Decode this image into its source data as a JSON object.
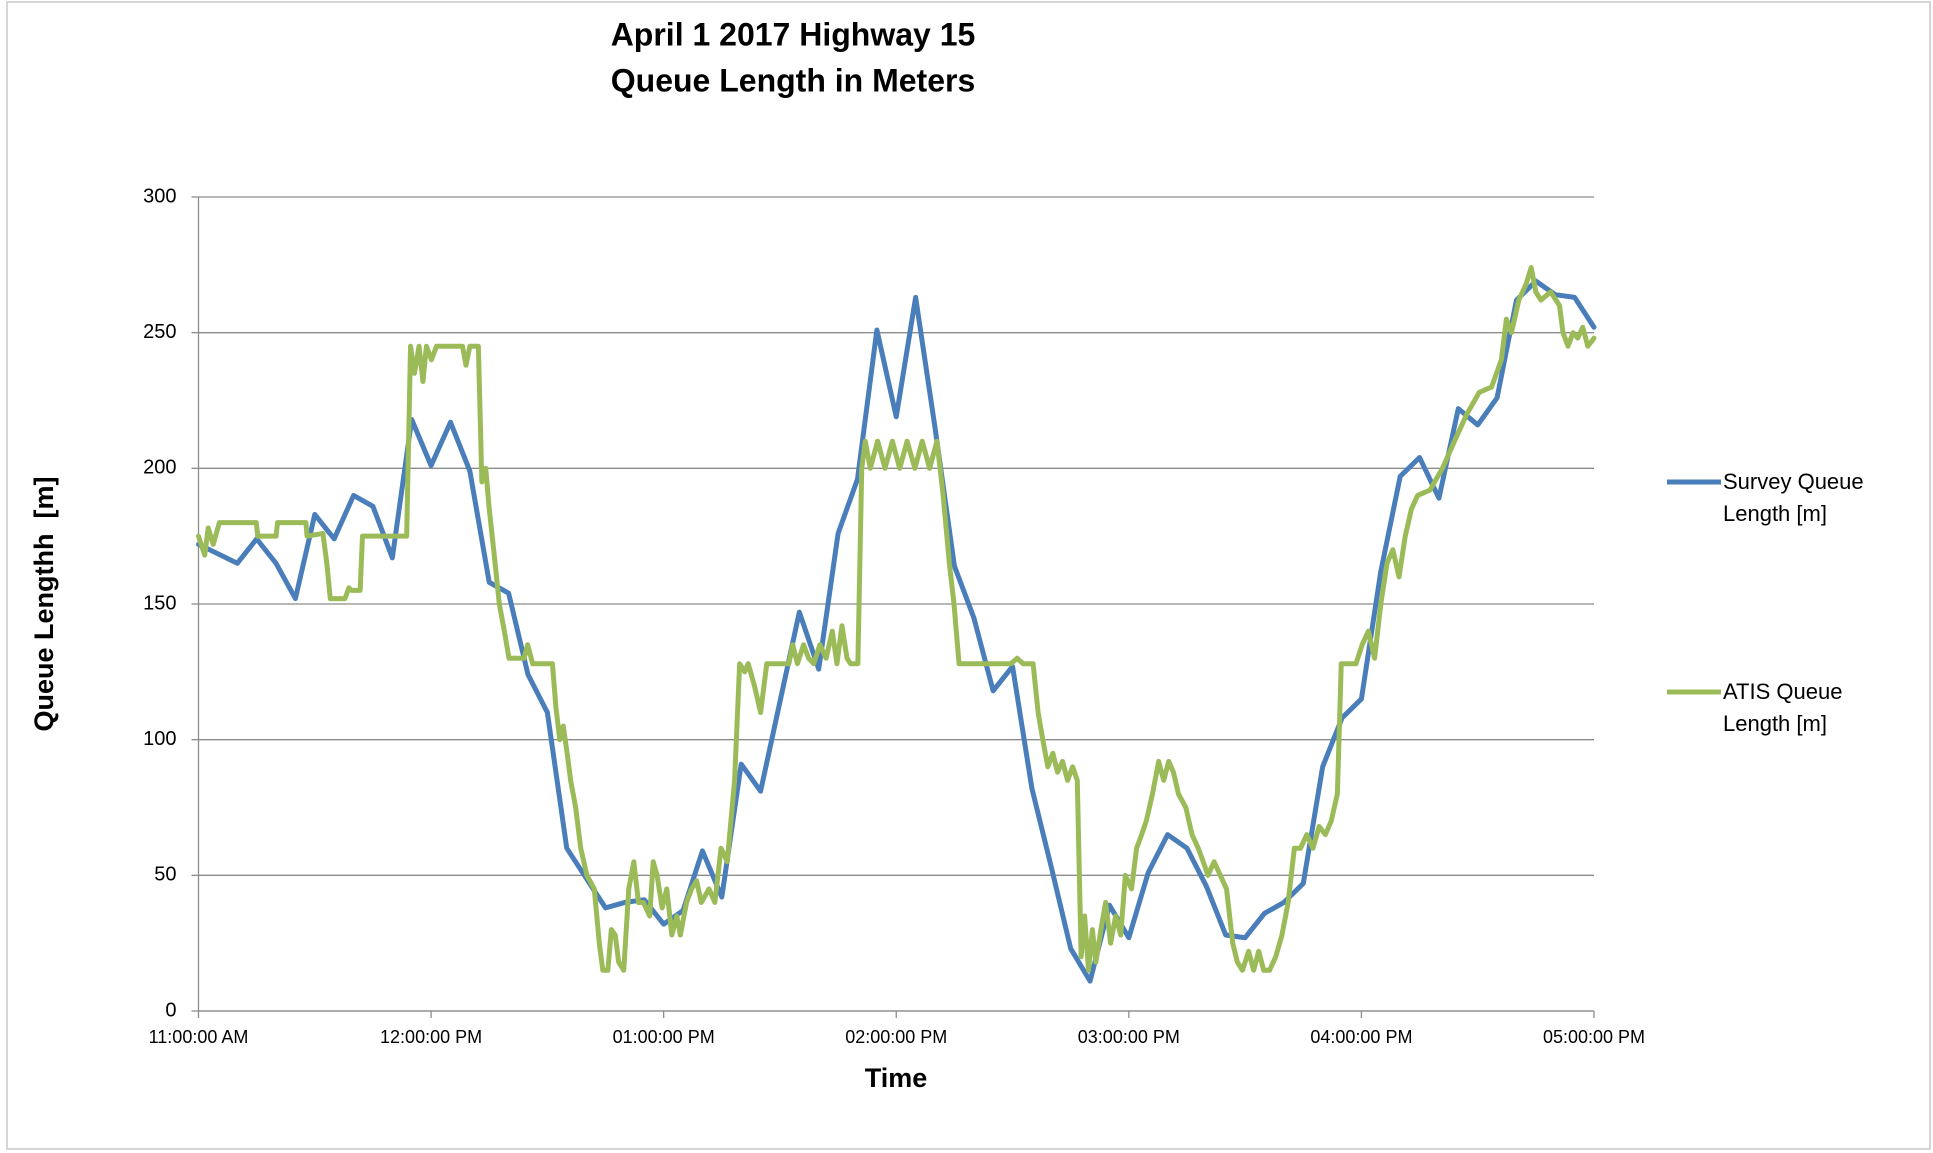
{
  "chart_data": {
    "type": "line",
    "title": [
      "April 1 2017 Highway 15",
      "Queue Length in Meters"
    ],
    "x_label": "Time",
    "y_label": "Queue Lengthh  [m]",
    "xlim": [
      660,
      1020
    ],
    "xticks": [
      {
        "value": 660,
        "label": "11:00:00 AM"
      },
      {
        "value": 720,
        "label": "12:00:00 PM"
      },
      {
        "value": 780,
        "label": "01:00:00 PM"
      },
      {
        "value": 840,
        "label": "02:00:00 PM"
      },
      {
        "value": 900,
        "label": "03:00:00 PM"
      },
      {
        "value": 960,
        "label": "04:00:00 PM"
      },
      {
        "value": 1020,
        "label": "05:00:00 PM"
      }
    ],
    "ylim": [
      0,
      300
    ],
    "yticks": [
      0,
      50,
      100,
      150,
      200,
      250,
      300
    ],
    "grid": true,
    "legend": "right",
    "series": [
      {
        "name": "Survey Queue Length [m]",
        "color": "#4a7ebb",
        "x": [
          660,
          670,
          675,
          680,
          685,
          690,
          695,
          700,
          705,
          710,
          715,
          720,
          725,
          730,
          735,
          740,
          745,
          750,
          755,
          760,
          765,
          770,
          775,
          780,
          785,
          790,
          795,
          800,
          805,
          810,
          815,
          820,
          825,
          830,
          835,
          840,
          845,
          850,
          855,
          860,
          865,
          870,
          875,
          880,
          885,
          890,
          895,
          900,
          905,
          910,
          915,
          920,
          925,
          930,
          935,
          940,
          945,
          950,
          955,
          960,
          965,
          970,
          975,
          980,
          985,
          990,
          995,
          1000,
          1005,
          1010,
          1015,
          1020
        ],
        "values": [
          172,
          165,
          174,
          165,
          152,
          183,
          174,
          190,
          186,
          167,
          218,
          201,
          217,
          199,
          158,
          154,
          124,
          110,
          60,
          49,
          38,
          40,
          41,
          32,
          37,
          59,
          42,
          91,
          81,
          114,
          147,
          126,
          176,
          196,
          251,
          219,
          263,
          215,
          164,
          145,
          118,
          127,
          82,
          53,
          23,
          11,
          39,
          27,
          51,
          65,
          60,
          46,
          28,
          27,
          36,
          40,
          47,
          90,
          108,
          115,
          162,
          197,
          204,
          189,
          222,
          216,
          226,
          262,
          269,
          264,
          263,
          252
        ]
      },
      {
        "name": "ATIS Queue Length [m]",
        "color": "#9bbb59",
        "x": [
          660,
          661.6,
          662.5,
          663.8,
          665.4,
          674.9,
          675.3,
          680,
          680.4,
          687.7,
          688,
          692.1,
          693.1,
          694,
          697.8,
          698.8,
          699.4,
          701.7,
          702.3,
          713.7,
          714.7,
          715.7,
          716.9,
          717.9,
          718.8,
          720.1,
          721.4,
          728.1,
          729,
          730,
          732.2,
          733.1,
          734.1,
          735,
          736.3,
          737.6,
          738.9,
          740.1,
          744,
          744.9,
          746.2,
          751.3,
          752.2,
          753.2,
          754.1,
          755.1,
          756,
          757.3,
          758.6,
          760.2,
          762.1,
          763.4,
          764.3,
          765.6,
          766.5,
          767.5,
          768.4,
          769.7,
          771,
          772.3,
          773.5,
          774.8,
          776.4,
          777.3,
          778.3,
          779.6,
          780.8,
          782.1,
          783.4,
          784.3,
          785.9,
          787.2,
          788.5,
          789.7,
          791.7,
          793.2,
          794.8,
          796.4,
          798.3,
          799.6,
          800.9,
          801.8,
          803.4,
          805,
          806.6,
          812.3,
          813.3,
          814.5,
          816.1,
          817.4,
          818.7,
          820.3,
          821.9,
          823.5,
          824.7,
          826,
          827.3,
          828.2,
          830.1,
          831.1,
          832,
          833.3,
          835.2,
          837.1,
          839,
          840.9,
          842.8,
          844.8,
          846.7,
          848.6,
          850.5,
          852.1,
          853.7,
          854.9,
          856.2,
          869.6,
          871.2,
          872.7,
          875.3,
          876.6,
          877.8,
          879.1,
          880.4,
          881.6,
          882.9,
          884.2,
          885.5,
          886.7,
          887.7,
          888.6,
          889.6,
          890.6,
          891.5,
          892.8,
          894,
          895.3,
          896.6,
          897.9,
          899.1,
          900.7,
          902,
          903.3,
          904.5,
          906.1,
          907.7,
          909,
          910.3,
          911.5,
          912.8,
          914.7,
          916.3,
          917.9,
          919.2,
          920.4,
          922,
          923.6,
          925.2,
          926.8,
          928,
          929.3,
          930.9,
          932.2,
          933.5,
          934.8,
          936.3,
          937.9,
          939.5,
          941.1,
          942.7,
          944.3,
          945.9,
          947.5,
          949.1,
          950.7,
          952.2,
          953.8,
          954.8,
          958.6,
          960.2,
          961.8,
          963.4,
          965,
          966.6,
          968.1,
          969.7,
          971.3,
          972.9,
          974.5,
          977.7,
          980.9,
          984,
          987.2,
          990.4,
          993.6,
          996.1,
          997.4,
          998.7,
          1000.6,
          1002.5,
          1003.8,
          1005,
          1006.3,
          1008.8,
          1011.1,
          1012,
          1013.3,
          1014.6,
          1015.8,
          1017.1,
          1018.4,
          1020
        ],
        "values": [
          175,
          168,
          178,
          172,
          180,
          180,
          175,
          175,
          180,
          180,
          175,
          176,
          165,
          152,
          152,
          156,
          155,
          155,
          175,
          175,
          245,
          235,
          245,
          232,
          245,
          240,
          245,
          245,
          238,
          245,
          245,
          195,
          200,
          185,
          168,
          150,
          140,
          130,
          130,
          135,
          128,
          128,
          112,
          100,
          105,
          95,
          85,
          75,
          60,
          50,
          45,
          25,
          15,
          15,
          30,
          28,
          18,
          15,
          45,
          55,
          40,
          40,
          35,
          55,
          50,
          38,
          45,
          28,
          35,
          28,
          40,
          45,
          48,
          40,
          45,
          40,
          60,
          55,
          85,
          128,
          125,
          128,
          120,
          110,
          128,
          128,
          135,
          128,
          135,
          130,
          128,
          135,
          130,
          140,
          128,
          142,
          130,
          128,
          128,
          200,
          210,
          200,
          210,
          200,
          210,
          200,
          210,
          200,
          210,
          200,
          210,
          190,
          165,
          150,
          128,
          128,
          130,
          128,
          128,
          110,
          100,
          90,
          95,
          88,
          92,
          85,
          90,
          85,
          20,
          35,
          15,
          30,
          18,
          30,
          40,
          25,
          35,
          28,
          50,
          45,
          60,
          65,
          70,
          80,
          92,
          85,
          92,
          88,
          80,
          75,
          65,
          60,
          55,
          50,
          55,
          50,
          45,
          25,
          18,
          15,
          22,
          15,
          22,
          15,
          15,
          20,
          28,
          40,
          60,
          60,
          65,
          60,
          68,
          65,
          70,
          80,
          128,
          128,
          135,
          140,
          130,
          150,
          165,
          170,
          160,
          175,
          185,
          190,
          192,
          200,
          210,
          220,
          228,
          230,
          240,
          255,
          250,
          262,
          268,
          274,
          265,
          262,
          265,
          260,
          250,
          245,
          250,
          248,
          252,
          245,
          248
        ]
      }
    ]
  }
}
